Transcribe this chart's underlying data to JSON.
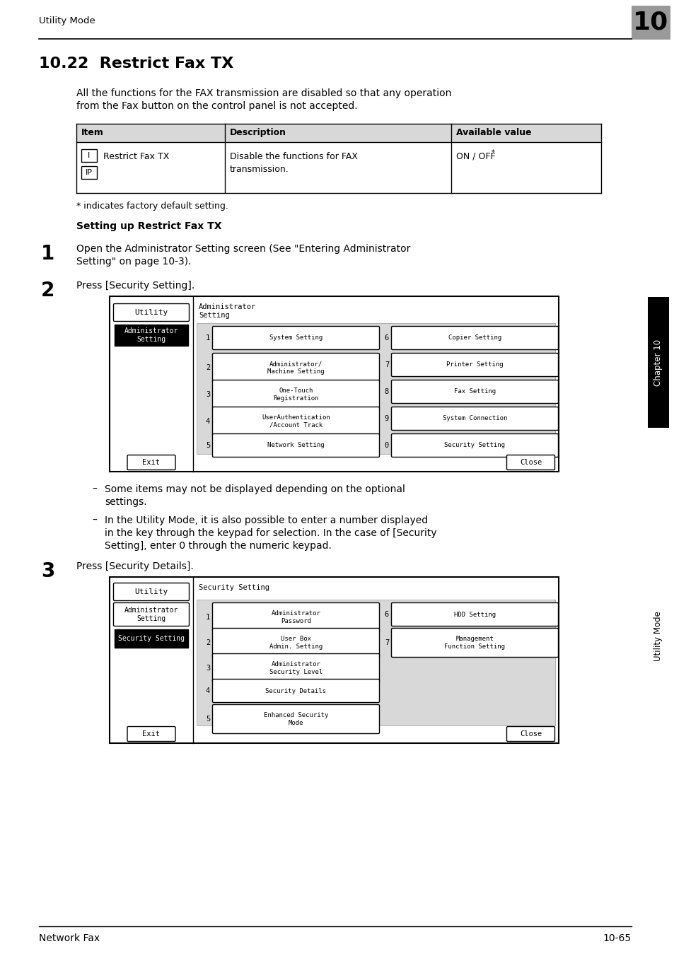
{
  "page_bg": "#ffffff",
  "header_text": "Utility Mode",
  "header_num": "10",
  "header_num_bg": "#999999",
  "title": "10.22  Restrict Fax TX",
  "intro_line1": "All the functions for the FAX transmission are disabled so that any operation",
  "intro_line2": "from the Fax button on the control panel is not accepted.",
  "tbl_h1": "Item",
  "tbl_h2": "Description",
  "tbl_h3": "Available value",
  "tbl_r1": "Restrict Fax TX",
  "tbl_r2": "Disable the functions for FAX\ntransmission.",
  "tbl_r3": "ON / OFF",
  "footnote": "* indicates factory default setting.",
  "section_title": "Setting up Restrict Fax TX",
  "step1_num": "1",
  "step1_line1": "Open the Administrator Setting screen (See \"Entering Administrator",
  "step1_line2": "Setting\" on page 10-3).",
  "step2_num": "2",
  "step2_text": "Press [Security Setting].",
  "sc1_left1": "Utility",
  "sc1_left2_active": "Administrator\nSetting",
  "sc1_header": "Administrator\nSetting",
  "sc1_bl": [
    "System Setting",
    "Administrator/\nMachine Setting",
    "One-Touch\nRegistration",
    "UserAuthentication\n/Account Track",
    "Network Setting"
  ],
  "sc1_br": [
    "Copier Setting",
    "Printer Setting",
    "Fax Setting",
    "System Connection",
    "Security Setting"
  ],
  "sc1_nl": [
    "1",
    "2",
    "3",
    "4",
    "5"
  ],
  "sc1_nr": [
    "6",
    "7",
    "8",
    "9",
    "0"
  ],
  "sc1_exit": "Exit",
  "sc1_close": "Close",
  "bullet1_line1": "Some items may not be displayed depending on the optional",
  "bullet1_line2": "settings.",
  "bullet2_line1": "In the Utility Mode, it is also possible to enter a number displayed",
  "bullet2_line2": "in the key through the keypad for selection. In the case of [Security",
  "bullet2_line3": "Setting], enter 0 through the numeric keypad.",
  "step3_num": "3",
  "step3_text": "Press [Security Details].",
  "sc2_left1": "Utility",
  "sc2_left2": "Administrator\nSetting",
  "sc2_left3_active": "Security Setting",
  "sc2_header": "Security Setting",
  "sc2_bl": [
    "Administrator\nPassword",
    "User Box\nAdmin. Setting",
    "Administrator\nSecurity Level",
    "Security Details",
    "Enhanced Security\nMode"
  ],
  "sc2_br": [
    "HDD Setting",
    "Management\nFunction Setting"
  ],
  "sc2_nl": [
    "1",
    "2",
    "3",
    "4",
    "5"
  ],
  "sc2_nr": [
    "6",
    "7"
  ],
  "sc2_exit": "Exit",
  "sc2_close": "Close",
  "footer_left": "Network Fax",
  "footer_right": "10-65",
  "sidebar_chapter": "Chapter 10",
  "sidebar_mode": "Utility Mode",
  "ch10_box_color": "#000000",
  "sidebar_ch_text_color": "#ffffff",
  "sidebar_mode_text_color": "#000000"
}
